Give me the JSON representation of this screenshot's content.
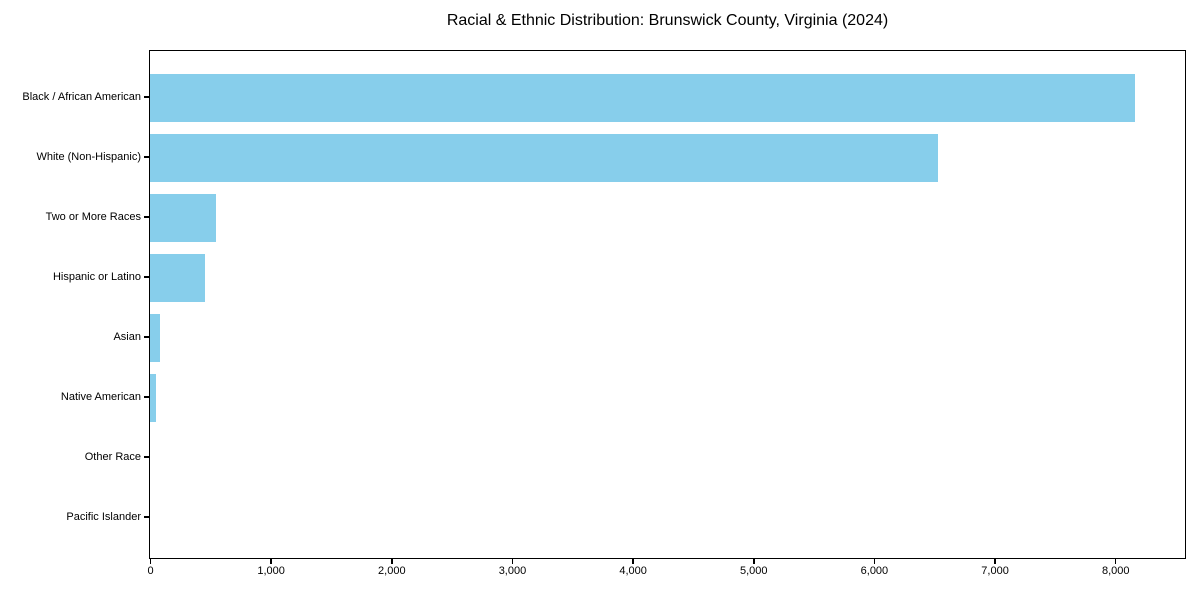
{
  "chart_data": {
    "type": "bar",
    "orientation": "horizontal",
    "title": "Racial & Ethnic Distribution: Brunswick County, Virginia (2024)",
    "categories": [
      "Black / African American",
      "White (Non-Hispanic)",
      "Two or More Races",
      "Hispanic or Latino",
      "Asian",
      "Native American",
      "Other Race",
      "Pacific Islander"
    ],
    "values": [
      8165,
      6530,
      545,
      455,
      85,
      50,
      0,
      0
    ],
    "xlabel": "",
    "ylabel": "",
    "xlim": [
      0,
      8570
    ],
    "x_ticks": [
      0,
      1000,
      2000,
      3000,
      4000,
      5000,
      6000,
      7000,
      8000
    ],
    "x_tick_labels": [
      "0",
      "1,000",
      "2,000",
      "3,000",
      "4,000",
      "5,000",
      "6,000",
      "7,000",
      "8,000"
    ],
    "bar_color": "#87CEEB",
    "axis_color": "#000000",
    "background_color": "#ffffff",
    "grid": false,
    "legend": null
  }
}
